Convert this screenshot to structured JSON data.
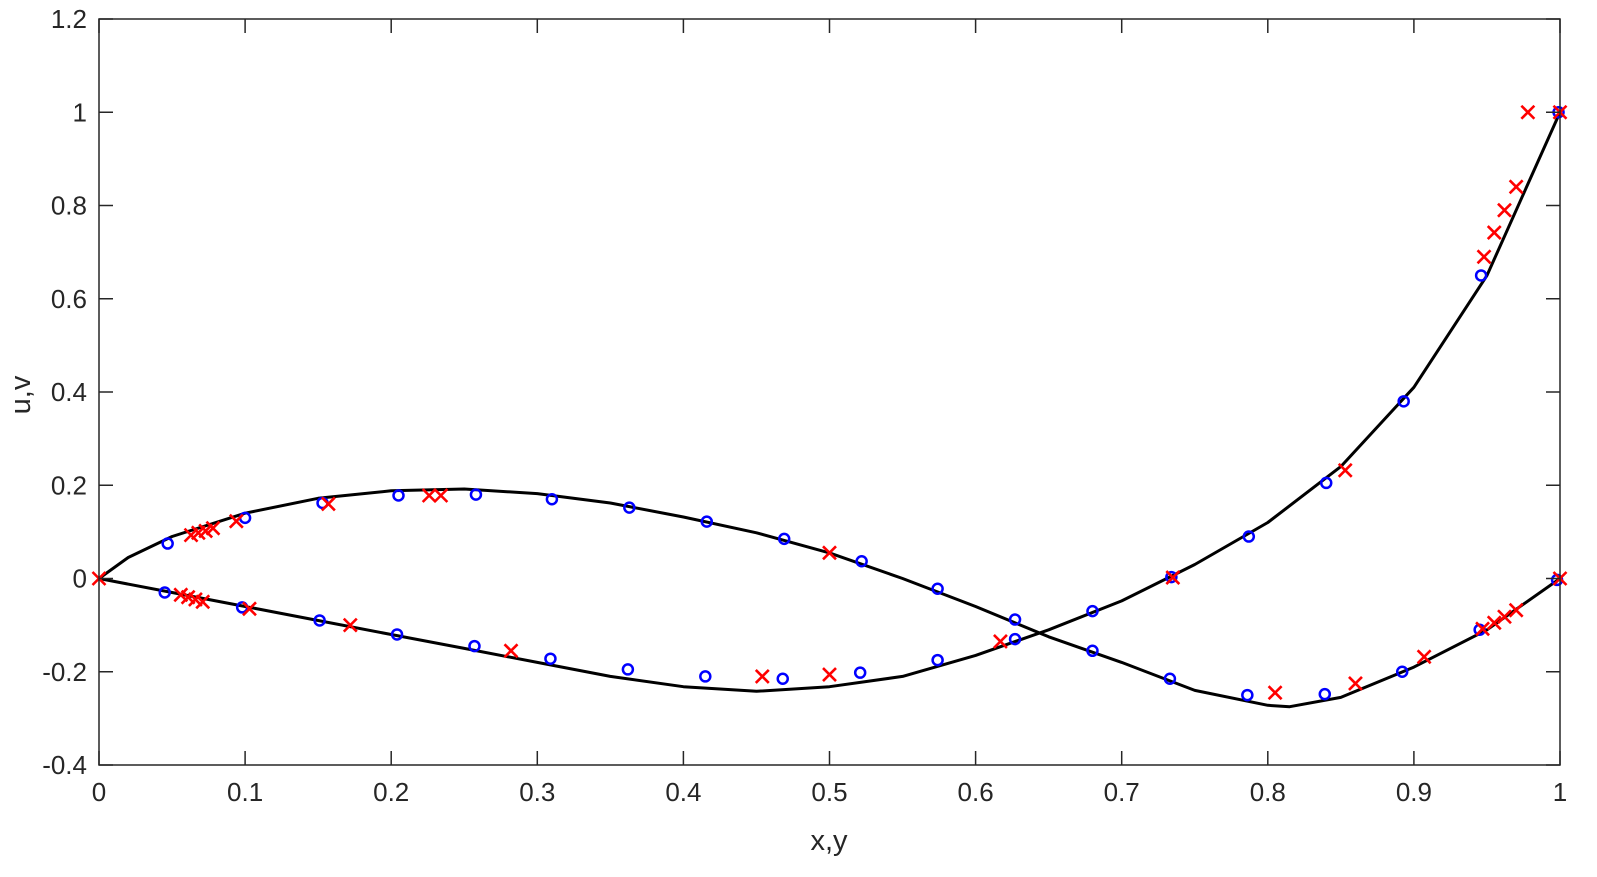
{
  "chart_data": {
    "type": "line",
    "title": "",
    "xlabel": "x,y",
    "ylabel": "u,v",
    "xlim": [
      0,
      1
    ],
    "ylim": [
      -0.4,
      1.2
    ],
    "xticks": [
      0,
      0.1,
      0.2,
      0.3,
      0.4,
      0.5,
      0.6,
      0.7,
      0.8,
      0.9,
      1
    ],
    "xtick_labels": [
      "0",
      "0.1",
      "0.2",
      "0.3",
      "0.4",
      "0.5",
      "0.6",
      "0.7",
      "0.8",
      "0.9",
      "1"
    ],
    "yticks": [
      -0.4,
      -0.2,
      0,
      0.2,
      0.4,
      0.6,
      0.8,
      1,
      1.2
    ],
    "ytick_labels": [
      "-0.4",
      "-0.2",
      "0",
      "0.2",
      "0.4",
      "0.6",
      "0.8",
      "1",
      "1.2"
    ],
    "grid": false,
    "box": true,
    "colors": {
      "line": "#000000",
      "circle": "#0000ff",
      "cross": "#ff0000",
      "axis": "#262626"
    },
    "lines": [
      {
        "x": [
          0,
          0.02,
          0.05,
          0.1,
          0.15,
          0.2,
          0.25,
          0.3,
          0.35,
          0.4,
          0.45,
          0.5,
          0.55,
          0.6,
          0.65,
          0.7,
          0.75,
          0.8,
          0.815,
          0.85,
          0.9,
          0.95,
          1
        ],
        "y": [
          0,
          0.045,
          0.09,
          0.14,
          0.172,
          0.188,
          0.192,
          0.182,
          0.162,
          0.132,
          0.098,
          0.055,
          0.0,
          -0.06,
          -0.125,
          -0.18,
          -0.24,
          -0.272,
          -0.275,
          -0.255,
          -0.19,
          -0.11,
          0
        ]
      },
      {
        "x": [
          0,
          0.05,
          0.1,
          0.15,
          0.2,
          0.25,
          0.3,
          0.35,
          0.4,
          0.45,
          0.5,
          0.55,
          0.6,
          0.65,
          0.7,
          0.75,
          0.8,
          0.85,
          0.9,
          0.95,
          1
        ],
        "y": [
          0,
          -0.03,
          -0.06,
          -0.09,
          -0.12,
          -0.15,
          -0.18,
          -0.21,
          -0.232,
          -0.242,
          -0.232,
          -0.21,
          -0.165,
          -0.11,
          -0.048,
          0.03,
          0.12,
          0.24,
          0.41,
          0.65,
          1.0
        ]
      }
    ],
    "circles": {
      "x": [
        0.047,
        0.1,
        0.153,
        0.205,
        0.258,
        0.31,
        0.363,
        0.416,
        0.469,
        0.522,
        0.574,
        0.627,
        0.68,
        0.733,
        0.786,
        0.839,
        0.892,
        0.945,
        0.998,
        0.045,
        0.098,
        0.151,
        0.204,
        0.257,
        0.309,
        0.362,
        0.415,
        0.468,
        0.521,
        0.574,
        0.627,
        0.68,
        0.734,
        0.787,
        0.84,
        0.893,
        0.946,
        0.999
      ],
      "y": [
        0.075,
        0.13,
        0.162,
        0.178,
        0.18,
        0.17,
        0.152,
        0.122,
        0.085,
        0.037,
        -0.022,
        -0.088,
        -0.155,
        -0.215,
        -0.25,
        -0.248,
        -0.2,
        -0.11,
        -0.003,
        -0.03,
        -0.062,
        -0.09,
        -0.12,
        -0.145,
        -0.172,
        -0.195,
        -0.21,
        -0.215,
        -0.202,
        -0.175,
        -0.13,
        -0.07,
        0.003,
        0.09,
        0.205,
        0.38,
        0.65,
        1.0
      ]
    },
    "crosses": {
      "x": [
        0,
        0.063,
        0.068,
        0.073,
        0.078,
        0.094,
        0.157,
        0.226,
        0.234,
        0.5,
        0.617,
        0.735,
        0.805,
        0.86,
        0.907,
        0.947,
        0.955,
        0.962,
        0.97,
        1.0,
        0.056,
        0.061,
        0.066,
        0.071,
        0.103,
        0.172,
        0.282,
        0.454,
        0.5,
        0.853,
        0.948,
        0.955,
        0.962,
        0.97,
        0.978,
        1.0
      ],
      "y": [
        0,
        0.093,
        0.098,
        0.102,
        0.108,
        0.123,
        0.16,
        0.178,
        0.178,
        0.055,
        -0.135,
        0.002,
        -0.245,
        -0.225,
        -0.168,
        -0.108,
        -0.095,
        -0.082,
        -0.068,
        0,
        -0.035,
        -0.04,
        -0.045,
        -0.05,
        -0.065,
        -0.1,
        -0.155,
        -0.21,
        -0.206,
        0.232,
        0.69,
        0.742,
        0.79,
        0.84,
        1.0,
        1.0
      ]
    }
  }
}
